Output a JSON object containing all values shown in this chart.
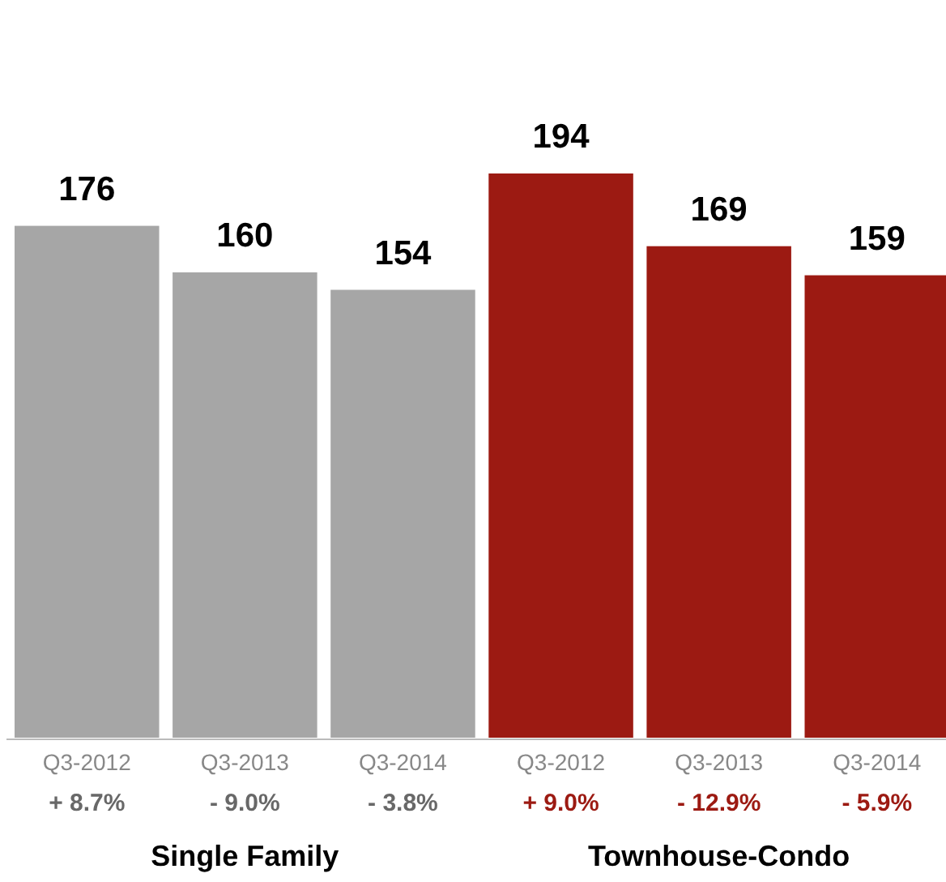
{
  "chart_data": {
    "type": "bar",
    "categories": [
      "Q3-2012",
      "Q3-2013",
      "Q3-2014",
      "Q3-2012",
      "Q3-2013",
      "Q3-2014"
    ],
    "values": [
      176,
      160,
      154,
      194,
      169,
      159
    ],
    "colors": [
      "#a6a6a6",
      "#a6a6a6",
      "#a6a6a6",
      "#9c1a12",
      "#9c1a12",
      "#9c1a12"
    ],
    "data_labels": true,
    "annotations": [
      "+ 8.7%",
      "- 9.0%",
      "- 3.8%",
      "+ 9.0%",
      "- 12.9%",
      "- 5.9%",
      "Single Family",
      "Townhouse-Condo"
    ]
  }
}
